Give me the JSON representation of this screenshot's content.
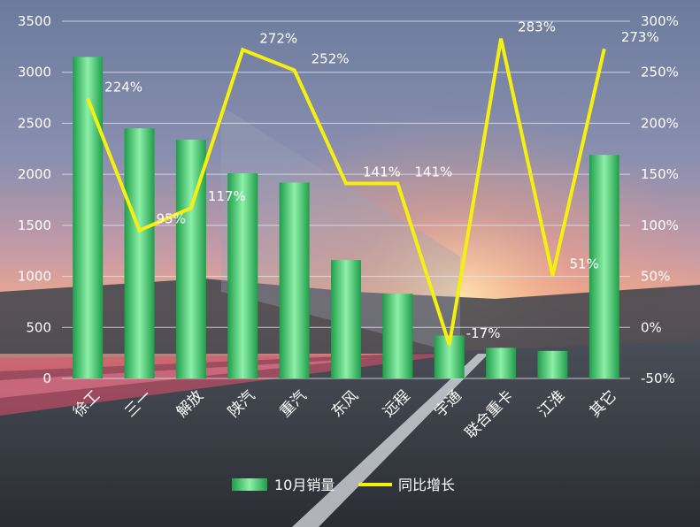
{
  "chart_data": {
    "type": "bar+line",
    "categories": [
      "徐工",
      "三一",
      "解放",
      "陕汽",
      "重汽",
      "东风",
      "远程",
      "宇通",
      "联合重卡",
      "江淮",
      "其它"
    ],
    "series": [
      {
        "name": "10月销量",
        "type": "bar",
        "axis": "left",
        "values": [
          3150,
          2450,
          2340,
          2010,
          1920,
          1160,
          830,
          420,
          300,
          270,
          2190
        ]
      },
      {
        "name": "同比增长",
        "type": "line",
        "axis": "right",
        "values": [
          224,
          95,
          117,
          272,
          252,
          141,
          141,
          -17,
          283,
          51,
          273
        ],
        "labels": [
          "224%",
          "95%",
          "117%",
          "272%",
          "252%",
          "141%",
          "141%",
          "-17%",
          "283%",
          "51%",
          "273%"
        ]
      }
    ],
    "y_left": {
      "min": 0,
      "max": 3500,
      "step": 500,
      "ticks": [
        "0",
        "500",
        "1000",
        "1500",
        "2000",
        "2500",
        "3000",
        "3500"
      ]
    },
    "y_right": {
      "min": -50,
      "max": 300,
      "step": 50,
      "ticks": [
        "-50%",
        "0%",
        "50%",
        "100%",
        "150%",
        "200%",
        "250%",
        "300%"
      ]
    },
    "grid": true,
    "legend": "bottom-center",
    "colors": {
      "bar": "#3ecb6a",
      "line": "#f5f010",
      "text": "#ffffff",
      "grid": "#dfe6f2"
    }
  }
}
